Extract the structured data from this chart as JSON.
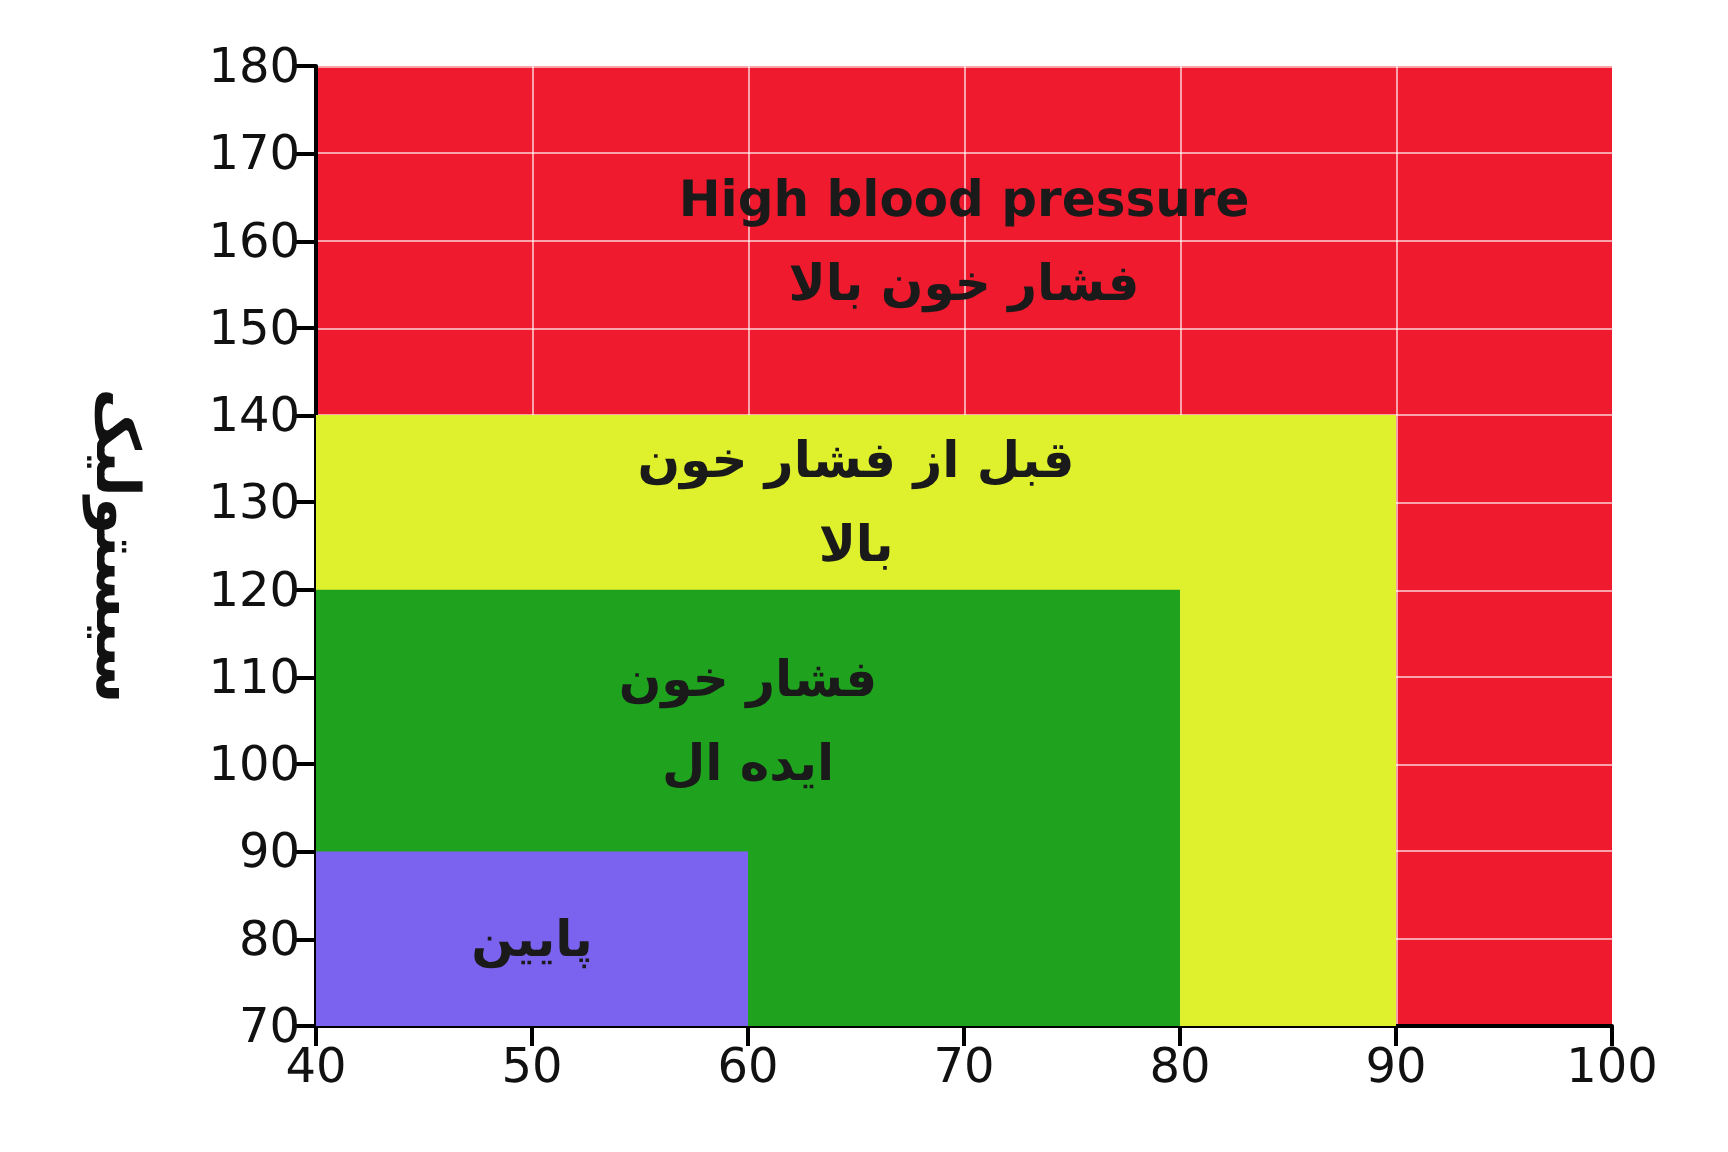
{
  "chart_data": {
    "type": "area",
    "ylabel": "سیستولیک",
    "xlim": [
      40,
      100
    ],
    "xticks": [
      40,
      50,
      60,
      70,
      80,
      90,
      100
    ],
    "ylim": [
      70,
      180
    ],
    "yticks": [
      70,
      80,
      90,
      100,
      110,
      120,
      130,
      140,
      150,
      160,
      170,
      180
    ],
    "grid": true,
    "bands": [
      {
        "axis": "x",
        "from": 40,
        "to": 100,
        "label": "High blood pressure\nفشار خون بالا",
        "color": "#f01a2e"
      }
    ],
    "series": [
      {
        "name": "قبل از فشار خون\nبالا",
        "color": "#dff02c",
        "x": [
          40,
          90
        ],
        "values": [
          140,
          140
        ]
      },
      {
        "name": "فشار خون\nایده ال",
        "color": "#1fa31f",
        "x": [
          40,
          80
        ],
        "values": [
          120,
          120
        ]
      },
      {
        "name": "پایین",
        "color": "#7b63f0",
        "x": [
          40,
          60
        ],
        "values": [
          90,
          90
        ]
      }
    ]
  }
}
